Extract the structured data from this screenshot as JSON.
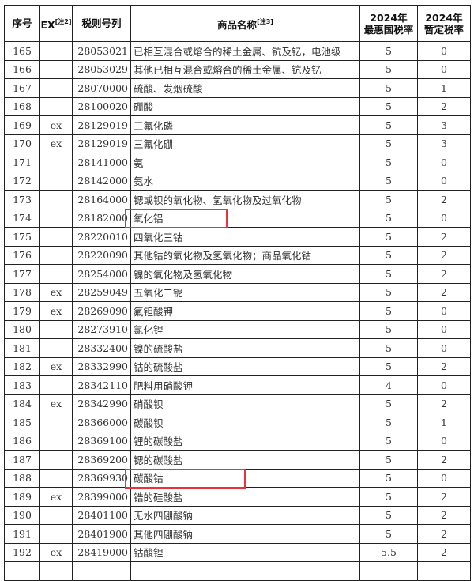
{
  "header": {
    "seq": "序号",
    "ex": "EX",
    "ex_note": "[注2]",
    "code": "税则号列",
    "name": "商品名称",
    "name_note": "[注3]",
    "mfn_year": "2024年",
    "mfn": "最惠国税率",
    "temp_year": "2024年",
    "temp": "暂定税率"
  },
  "rows": [
    {
      "seq": "165",
      "ex": "",
      "code": "28053021",
      "name": "已相互混合或熔合的稀土金属、钪及钇，电池级",
      "mfn": "5",
      "temp": "0"
    },
    {
      "seq": "166",
      "ex": "",
      "code": "28053029",
      "name": "其他已相互混合或熔合的稀土金属、钪及钇",
      "mfn": "5",
      "temp": "0"
    },
    {
      "seq": "167",
      "ex": "",
      "code": "28070000",
      "name": "硫酸、发烟硫酸",
      "mfn": "5",
      "temp": "1"
    },
    {
      "seq": "168",
      "ex": "",
      "code": "28100020",
      "name": "硼酸",
      "mfn": "5",
      "temp": "2"
    },
    {
      "seq": "169",
      "ex": "ex",
      "code": "28129019",
      "name": "三氟化磷",
      "mfn": "5",
      "temp": "3"
    },
    {
      "seq": "170",
      "ex": "ex",
      "code": "28129019",
      "name": "三氟化硼",
      "mfn": "5",
      "temp": "3"
    },
    {
      "seq": "171",
      "ex": "",
      "code": "28141000",
      "name": "氨",
      "mfn": "5",
      "temp": "0"
    },
    {
      "seq": "172",
      "ex": "",
      "code": "28142000",
      "name": "氨水",
      "mfn": "5",
      "temp": "0"
    },
    {
      "seq": "173",
      "ex": "",
      "code": "28164000",
      "name": "锶或钡的氧化物、氢氧化物及过氧化物",
      "mfn": "5",
      "temp": "2"
    },
    {
      "seq": "174",
      "ex": "",
      "code": "28182000",
      "name": "氧化铝",
      "mfn": "5",
      "temp": "0",
      "highlight": true
    },
    {
      "seq": "175",
      "ex": "",
      "code": "28220010",
      "name": "四氧化三钴",
      "mfn": "5",
      "temp": "2"
    },
    {
      "seq": "176",
      "ex": "",
      "code": "28220090",
      "name": "其他钴的氧化物及氢氧化物；商品氧化钴",
      "mfn": "5",
      "temp": "2"
    },
    {
      "seq": "177",
      "ex": "",
      "code": "28254000",
      "name": "镍的氧化物及氢氧化物",
      "mfn": "5",
      "temp": "2"
    },
    {
      "seq": "178",
      "ex": "ex",
      "code": "28259049",
      "name": "五氧化二铌",
      "mfn": "5",
      "temp": "2"
    },
    {
      "seq": "179",
      "ex": "ex",
      "code": "28269090",
      "name": "氟钽酸钾",
      "mfn": "5",
      "temp": "0"
    },
    {
      "seq": "180",
      "ex": "",
      "code": "28273910",
      "name": "氯化锂",
      "mfn": "5",
      "temp": "0"
    },
    {
      "seq": "181",
      "ex": "",
      "code": "28332400",
      "name": "镍的硫酸盐",
      "mfn": "5",
      "temp": "0"
    },
    {
      "seq": "182",
      "ex": "ex",
      "code": "28332990",
      "name": "钴的硫酸盐",
      "mfn": "5",
      "temp": "2"
    },
    {
      "seq": "183",
      "ex": "",
      "code": "28342110",
      "name": "肥料用硝酸钾",
      "mfn": "4",
      "temp": "0"
    },
    {
      "seq": "184",
      "ex": "ex",
      "code": "28342990",
      "name": "硝酸钡",
      "mfn": "5",
      "temp": "2"
    },
    {
      "seq": "185",
      "ex": "",
      "code": "28366000",
      "name": "碳酸钡",
      "mfn": "5",
      "temp": "1"
    },
    {
      "seq": "186",
      "ex": "",
      "code": "28369100",
      "name": "锂的碳酸盐",
      "mfn": "5",
      "temp": "0"
    },
    {
      "seq": "187",
      "ex": "",
      "code": "28369200",
      "name": "锶的碳酸盐",
      "mfn": "5",
      "temp": "2"
    },
    {
      "seq": "188",
      "ex": "",
      "code": "28369930",
      "name": "碳酸钴",
      "mfn": "5",
      "temp": "0",
      "highlight": true
    },
    {
      "seq": "189",
      "ex": "ex",
      "code": "28399000",
      "name": "锆的硅酸盐",
      "mfn": "5",
      "temp": "2"
    },
    {
      "seq": "190",
      "ex": "",
      "code": "28401100",
      "name": "无水四硼酸钠",
      "mfn": "5",
      "temp": "2"
    },
    {
      "seq": "191",
      "ex": "",
      "code": "28401900",
      "name": "其他四硼酸钠",
      "mfn": "5",
      "temp": "2"
    },
    {
      "seq": "192",
      "ex": "ex",
      "code": "28419000",
      "name": "钴酸锂",
      "mfn": "5.5",
      "temp": "2"
    }
  ],
  "highlight_color": "#e8333a"
}
